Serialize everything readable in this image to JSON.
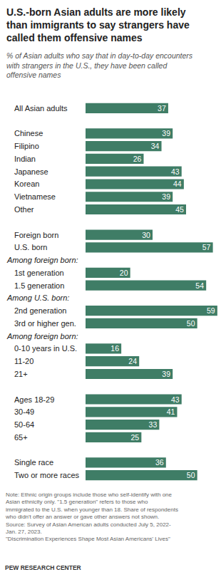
{
  "chart_data": {
    "type": "bar",
    "orientation": "horizontal",
    "data_labels": true,
    "tick_labels": false,
    "grid": false,
    "color": "#3f7d66",
    "title": [
      "U.S.-born Asian adults are more likely",
      "than immigrants to say strangers have",
      "called them offensive names"
    ],
    "subtitle": [
      "% of Asian adults who say that in day-to-day encounters",
      "with strangers in the U.S., they have been called",
      "offensive names"
    ],
    "categories": [
      "All Asian adults",
      null,
      "Chinese",
      "Filipino",
      "Indian",
      "Japanese",
      "Korean",
      "Vietnamese",
      "Other",
      null,
      "Foreign born",
      "U.S. born",
      "Among foreign born:",
      "1st generation",
      "1.5 generation",
      "Among U.S. born:",
      "2nd generation",
      "3rd or higher gen.",
      "Among foreign born:",
      "0-10 years in U.S.",
      "11-20",
      "21+",
      null,
      "Ages 18-29",
      "30-49",
      "50-64",
      "65+",
      null,
      "Single race",
      "Two or more races"
    ],
    "values": [
      37,
      null,
      39,
      34,
      26,
      43,
      44,
      39,
      45,
      null,
      30,
      57,
      null,
      20,
      54,
      null,
      59,
      50,
      null,
      16,
      24,
      39,
      null,
      43,
      41,
      33,
      25,
      null,
      36,
      50
    ],
    "xlim": [
      0,
      60
    ],
    "note": [
      "Note: Ethnic origin groups include those who self-identify with one",
      "Asian ethnicity only. \"1.5 generation\" refers to those who",
      "immigrated to the U.S. when younger than 18. Share of respondents",
      "who didn't offer an answer or gave other answers not shown."
    ],
    "source": [
      "Source: Survey of Asian American adults conducted July 5, 2022-",
      "Jan. 27, 2023."
    ],
    "report": "\"Discrimination Experiences Shape Most Asian Americans' Lives\"",
    "credit": "PEW RESEARCH CENTER"
  }
}
